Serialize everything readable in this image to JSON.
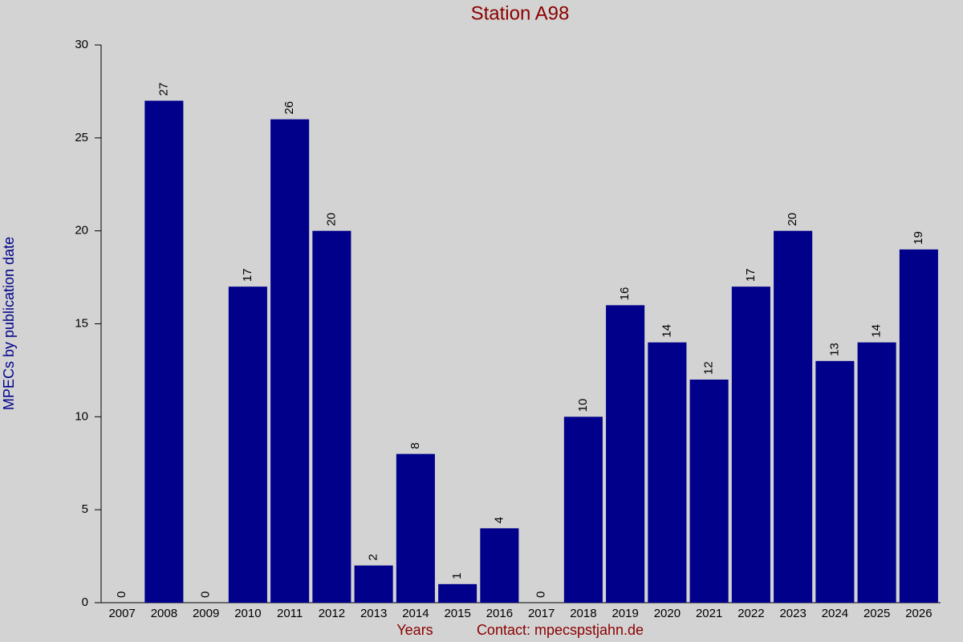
{
  "chart_data": {
    "type": "bar",
    "title": "Station A98",
    "y_label": "MPECs by publication date",
    "x_label": "Years",
    "annotation": "Contact: mpecspstjahn.de",
    "categories": [
      "2007",
      "2008",
      "2009",
      "2010",
      "2011",
      "2012",
      "2013",
      "2014",
      "2015",
      "2016",
      "2017",
      "2018",
      "2019",
      "2020",
      "2021",
      "2022",
      "2023",
      "2024",
      "2025",
      "2026"
    ],
    "values": [
      0,
      27,
      0,
      17,
      26,
      20,
      2,
      8,
      1,
      4,
      0,
      10,
      16,
      14,
      12,
      17,
      20,
      13,
      14,
      19
    ],
    "color": "#00008b",
    "ylim": [
      0,
      30
    ],
    "yticks": [
      0,
      5,
      10,
      15,
      20,
      25,
      30
    ],
    "grid": false
  }
}
